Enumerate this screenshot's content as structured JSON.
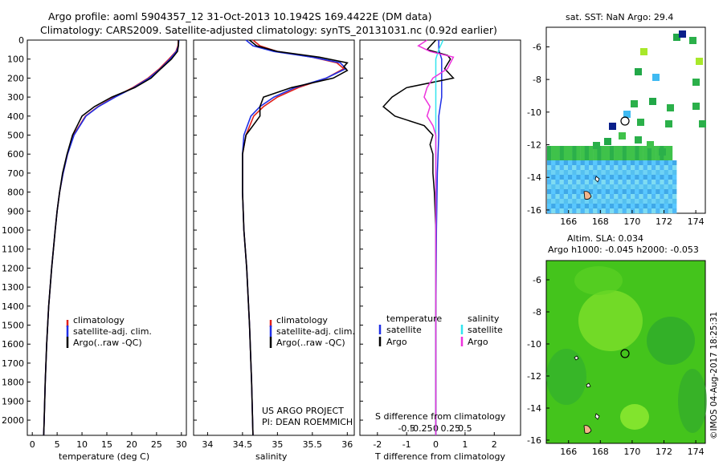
{
  "titles": {
    "line1": "Argo profile: aoml 5904357_12 31-Oct-2013 10.1942S 169.4422E (DM data)",
    "line2": "Climatology: CARS2009. Satellite-adjusted climatology: synTS_20131031.nc (0.92d earlier)"
  },
  "colors": {
    "climatology": "#e0201a",
    "satellite": "#1f2fe6",
    "argo": "#000000",
    "sal_sat": "#33e5ee",
    "sal_argo": "#ee33dd"
  },
  "depth_axis": {
    "min": 0,
    "max": 2080,
    "ticks": [
      0,
      100,
      200,
      300,
      400,
      500,
      600,
      700,
      800,
      900,
      1000,
      1100,
      1200,
      1300,
      1400,
      1500,
      1600,
      1700,
      1800,
      1900,
      2000
    ],
    "labels": [
      "0",
      "100",
      "200",
      "300",
      "400",
      "500",
      "600",
      "700",
      "800",
      "900",
      "1000",
      "1100",
      "1200",
      "1300",
      "1400",
      "1500",
      "1600",
      "1700",
      "1800",
      "1900",
      "2000"
    ]
  },
  "legend": {
    "climatology": "climatology",
    "satellite": "satellite-adj. clim.",
    "argo": "Argo(..raw -QC)"
  },
  "diff_legend": {
    "temperature": "temperature",
    "salinity": "salinity",
    "satellite": "satellite",
    "argo": "Argo"
  },
  "project": {
    "line1": "US ARGO PROJECT",
    "line2": "PI: DEAN ROEMMICH"
  },
  "sat_sst": {
    "title": "sat. SST: NaN Argo: 29.4"
  },
  "altim": {
    "title1": "Altim. SLA: 0.034",
    "title2": "Argo h1000: -0.045 h2000: -0.053"
  },
  "footer": "©IMOS 04-Aug-2017 18:25:31",
  "chart_data": [
    {
      "type": "line",
      "name": "temperature",
      "xlabel": "temperature (deg C)",
      "ylabel": "",
      "xlim": [
        -1,
        31
      ],
      "ylim": [
        2080,
        0
      ],
      "xticks": [
        0,
        5,
        10,
        15,
        20,
        25,
        30
      ],
      "xticklabels": [
        "0",
        "5",
        "10",
        "15",
        "20",
        "25",
        "30"
      ],
      "series": [
        {
          "name": "climatology",
          "depth": [
            0,
            30,
            60,
            100,
            150,
            200,
            250,
            300,
            350,
            400,
            500,
            600,
            700,
            800,
            900,
            1000,
            1200,
            1400,
            1600,
            1800,
            2000,
            2080
          ],
          "values": [
            29.4,
            29.3,
            28.9,
            27.5,
            25.6,
            23.3,
            20.2,
            16.5,
            13.2,
            10.7,
            8.3,
            7.1,
            6.2,
            5.5,
            5.0,
            4.6,
            3.9,
            3.3,
            2.9,
            2.6,
            2.4,
            2.3
          ]
        },
        {
          "name": "satellite",
          "depth": [
            0,
            30,
            60,
            100,
            150,
            200,
            250,
            300,
            350,
            400,
            500,
            600,
            700,
            800,
            900,
            1000,
            1200,
            1400,
            1600,
            1800,
            2000,
            2080
          ],
          "values": [
            29.5,
            29.4,
            29.0,
            27.7,
            25.8,
            23.5,
            20.4,
            16.7,
            13.3,
            10.8,
            8.4,
            7.1,
            6.2,
            5.5,
            5.0,
            4.6,
            3.9,
            3.3,
            2.9,
            2.6,
            2.4,
            2.3
          ]
        },
        {
          "name": "argo",
          "depth": [
            0,
            30,
            60,
            100,
            150,
            200,
            250,
            300,
            350,
            400,
            500,
            600,
            700,
            800,
            900,
            1000,
            1200,
            1400,
            1600,
            1800,
            2000,
            2080
          ],
          "values": [
            29.4,
            29.4,
            29.2,
            28.0,
            25.9,
            23.9,
            20.6,
            16.0,
            12.5,
            10.0,
            8.1,
            7.0,
            6.1,
            5.5,
            5.0,
            4.6,
            3.9,
            3.3,
            2.9,
            2.6,
            2.4,
            2.3
          ]
        }
      ]
    },
    {
      "type": "line",
      "name": "salinity",
      "xlabel": "salinity",
      "ylabel": "",
      "xlim": [
        33.8,
        36.1
      ],
      "ylim": [
        2080,
        0
      ],
      "xticks": [
        34,
        34.5,
        35,
        35.5,
        36
      ],
      "xticklabels": [
        "34",
        "34.5",
        "35",
        "35.5",
        "36"
      ],
      "series": [
        {
          "name": "climatology",
          "depth": [
            0,
            30,
            60,
            90,
            120,
            150,
            200,
            250,
            300,
            350,
            400,
            500,
            600,
            800,
            1000,
            1200,
            1500,
            1800,
            2080
          ],
          "values": [
            34.65,
            34.75,
            35.0,
            35.5,
            35.85,
            35.95,
            35.7,
            35.3,
            35.0,
            34.8,
            34.66,
            34.55,
            34.5,
            34.5,
            34.52,
            34.56,
            34.6,
            34.63,
            34.65
          ]
        },
        {
          "name": "satellite",
          "depth": [
            0,
            30,
            60,
            90,
            120,
            150,
            200,
            250,
            300,
            350,
            400,
            500,
            600,
            800,
            1000,
            1200,
            1500,
            1800,
            2080
          ],
          "values": [
            34.55,
            34.65,
            34.95,
            35.5,
            35.9,
            35.98,
            35.7,
            35.25,
            34.95,
            34.75,
            34.62,
            34.52,
            34.5,
            34.5,
            34.52,
            34.56,
            34.6,
            34.63,
            34.65
          ]
        },
        {
          "name": "argo",
          "depth": [
            0,
            30,
            60,
            90,
            120,
            140,
            160,
            200,
            250,
            300,
            350,
            400,
            450,
            500,
            600,
            800,
            1000,
            1200,
            1500,
            1800,
            2080
          ],
          "values": [
            34.6,
            34.7,
            35.0,
            35.6,
            36.0,
            35.95,
            36.0,
            35.8,
            35.2,
            34.8,
            34.75,
            34.75,
            34.65,
            34.55,
            34.5,
            34.5,
            34.52,
            34.56,
            34.6,
            34.63,
            34.65
          ]
        }
      ]
    },
    {
      "type": "line",
      "name": "difference",
      "xlabel": "T difference from climatology",
      "xlabel2": "S difference from climatology",
      "xlim": [
        -2.6,
        2.9
      ],
      "ylim": [
        2080,
        0
      ],
      "xticks": [
        -2,
        -1,
        0,
        1,
        2
      ],
      "xticklabels": [
        "-2",
        "-1",
        "0",
        "1",
        "2"
      ],
      "sticks": [
        -1,
        -0.5,
        0,
        0.5,
        1
      ],
      "sticklabels": [
        "-0.5",
        "-0.25",
        "0",
        "0.25",
        "0.5"
      ],
      "series": [
        {
          "name": "temperature satellite",
          "depth": [
            0,
            50,
            100,
            200,
            300,
            400,
            500,
            700,
            1000,
            1500,
            2080
          ],
          "values": [
            0.1,
            0.1,
            0.2,
            0.2,
            0.2,
            0.1,
            0.1,
            0.05,
            0.02,
            0.0,
            0.0
          ]
        },
        {
          "name": "temperature Argo",
          "depth": [
            0,
            50,
            80,
            100,
            150,
            200,
            250,
            300,
            350,
            400,
            450,
            500,
            550,
            600,
            700,
            800,
            1000,
            1500,
            2080
          ],
          "values": [
            0.0,
            -0.3,
            0.4,
            0.5,
            0.3,
            0.6,
            -1.0,
            -1.5,
            -1.8,
            -1.4,
            -0.4,
            -0.1,
            -0.2,
            -0.1,
            -0.1,
            -0.05,
            0,
            0,
            0
          ]
        },
        {
          "name": "salinity satellite",
          "depth": [
            0,
            50,
            100,
            200,
            300,
            400,
            500,
            700,
            1000,
            1500,
            2080
          ],
          "values": [
            0.25,
            0.1,
            0.0,
            0.0,
            0.0,
            0.0,
            0.0,
            0.0,
            0.0,
            0.0,
            0.0
          ]
        },
        {
          "name": "salinity Argo",
          "depth": [
            0,
            30,
            60,
            90,
            120,
            150,
            200,
            250,
            300,
            350,
            400,
            450,
            500,
            600,
            1000,
            2080
          ],
          "values": [
            -0.3,
            -0.6,
            -0.2,
            0.6,
            0.5,
            0.4,
            -0.1,
            -0.3,
            -0.4,
            -0.2,
            -0.3,
            -0.1,
            0,
            0,
            0,
            0
          ]
        }
      ]
    }
  ],
  "maps": {
    "xticks": [
      166,
      168,
      170,
      172,
      174
    ],
    "yticks": [
      -6,
      -8,
      -10,
      -12,
      -14,
      -16
    ]
  }
}
